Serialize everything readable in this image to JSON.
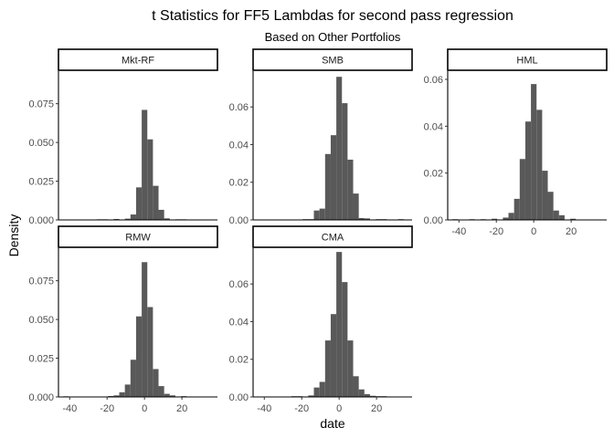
{
  "chart_data": {
    "type": "bar",
    "title": "t Statistics for FF5 Lambdas for second pass regression",
    "subtitle": "Based on Other Portfolios",
    "xlabel": "date",
    "ylabel": "Density",
    "grid": false,
    "bin_width": 3,
    "xlim": [
      -46,
      39
    ],
    "x_ticks": [
      -40,
      -20,
      0,
      20
    ],
    "bar_color": "#595959",
    "panels": [
      {
        "name": "Mkt-RF",
        "ylim": [
          0,
          0.096
        ],
        "y_ticks": [
          0,
          0.025,
          0.05,
          0.075
        ],
        "y_tick_labels": [
          "0.000",
          "0.025",
          "0.050",
          "0.075"
        ],
        "show_x_axis": false,
        "bins": [
          {
            "x": -24,
            "y": 0.0004
          },
          {
            "x": -21,
            "y": 0.0004
          },
          {
            "x": -15,
            "y": 0.0006
          },
          {
            "x": -9,
            "y": 0.0008
          },
          {
            "x": -6,
            "y": 0.0035
          },
          {
            "x": -3,
            "y": 0.021
          },
          {
            "x": 0,
            "y": 0.071
          },
          {
            "x": 3,
            "y": 0.052
          },
          {
            "x": 6,
            "y": 0.022
          },
          {
            "x": 9,
            "y": 0.0065
          },
          {
            "x": 12,
            "y": 0.001
          },
          {
            "x": 18,
            "y": 0.0004
          },
          {
            "x": 21,
            "y": 0.0004
          }
        ]
      },
      {
        "name": "SMB",
        "ylim": [
          0,
          0.079
        ],
        "y_ticks": [
          0,
          0.02,
          0.04,
          0.06
        ],
        "y_tick_labels": [
          "0.00",
          "0.02",
          "0.04",
          "0.06"
        ],
        "show_x_axis": false,
        "bins": [
          {
            "x": -18,
            "y": 0.0004
          },
          {
            "x": -15,
            "y": 0.0004
          },
          {
            "x": -12,
            "y": 0.005
          },
          {
            "x": -9,
            "y": 0.006
          },
          {
            "x": -6,
            "y": 0.035
          },
          {
            "x": -3,
            "y": 0.045
          },
          {
            "x": 0,
            "y": 0.076
          },
          {
            "x": 3,
            "y": 0.062
          },
          {
            "x": 6,
            "y": 0.032
          },
          {
            "x": 9,
            "y": 0.014
          },
          {
            "x": 12,
            "y": 0.001
          },
          {
            "x": 15,
            "y": 0.0008
          },
          {
            "x": 21,
            "y": 0.0004
          },
          {
            "x": 24,
            "y": 0.0004
          },
          {
            "x": 33,
            "y": 0.0004
          }
        ]
      },
      {
        "name": "HML",
        "ylim": [
          0,
          0.0635
        ],
        "y_ticks": [
          0,
          0.02,
          0.04,
          0.06
        ],
        "y_tick_labels": [
          "0.00",
          "0.02",
          "0.04",
          "0.06"
        ],
        "show_x_axis": true,
        "bins": [
          {
            "x": -42,
            "y": 0.0003
          },
          {
            "x": -33,
            "y": 0.0003
          },
          {
            "x": -27,
            "y": 0.0003
          },
          {
            "x": -21,
            "y": 0.0005
          },
          {
            "x": -15,
            "y": 0.001
          },
          {
            "x": -12,
            "y": 0.003
          },
          {
            "x": -9,
            "y": 0.009
          },
          {
            "x": -6,
            "y": 0.026
          },
          {
            "x": -3,
            "y": 0.042
          },
          {
            "x": 0,
            "y": 0.058
          },
          {
            "x": 3,
            "y": 0.047
          },
          {
            "x": 6,
            "y": 0.021
          },
          {
            "x": 9,
            "y": 0.012
          },
          {
            "x": 12,
            "y": 0.004
          },
          {
            "x": 15,
            "y": 0.002
          },
          {
            "x": 21,
            "y": 0.0005
          }
        ]
      },
      {
        "name": "RMW",
        "ylim": [
          0,
          0.096
        ],
        "y_ticks": [
          0,
          0.025,
          0.05,
          0.075
        ],
        "y_tick_labels": [
          "0.000",
          "0.025",
          "0.050",
          "0.075"
        ],
        "show_x_axis": true,
        "bins": [
          {
            "x": -42,
            "y": 0.0004
          },
          {
            "x": -18,
            "y": 0.0006
          },
          {
            "x": -15,
            "y": 0.001
          },
          {
            "x": -12,
            "y": 0.003
          },
          {
            "x": -9,
            "y": 0.008
          },
          {
            "x": -6,
            "y": 0.024
          },
          {
            "x": -3,
            "y": 0.052
          },
          {
            "x": 0,
            "y": 0.087
          },
          {
            "x": 3,
            "y": 0.058
          },
          {
            "x": 6,
            "y": 0.018
          },
          {
            "x": 9,
            "y": 0.007
          },
          {
            "x": 12,
            "y": 0.002
          },
          {
            "x": 15,
            "y": 0.001
          },
          {
            "x": 21,
            "y": 0.0005
          }
        ]
      },
      {
        "name": "CMA",
        "ylim": [
          0,
          0.079
        ],
        "y_ticks": [
          0,
          0.02,
          0.04,
          0.06
        ],
        "y_tick_labels": [
          "0.00",
          "0.02",
          "0.04",
          "0.06"
        ],
        "show_x_axis": true,
        "bins": [
          {
            "x": -24,
            "y": 0.0004
          },
          {
            "x": -21,
            "y": 0.0004
          },
          {
            "x": -15,
            "y": 0.0008
          },
          {
            "x": -12,
            "y": 0.005
          },
          {
            "x": -9,
            "y": 0.008
          },
          {
            "x": -6,
            "y": 0.03
          },
          {
            "x": -3,
            "y": 0.044
          },
          {
            "x": 0,
            "y": 0.077
          },
          {
            "x": 3,
            "y": 0.061
          },
          {
            "x": 6,
            "y": 0.03
          },
          {
            "x": 9,
            "y": 0.011
          },
          {
            "x": 12,
            "y": 0.004
          },
          {
            "x": 15,
            "y": 0.0015
          },
          {
            "x": 18,
            "y": 0.0006
          },
          {
            "x": 21,
            "y": 0.0004
          },
          {
            "x": 24,
            "y": 0.0004
          }
        ]
      }
    ]
  }
}
